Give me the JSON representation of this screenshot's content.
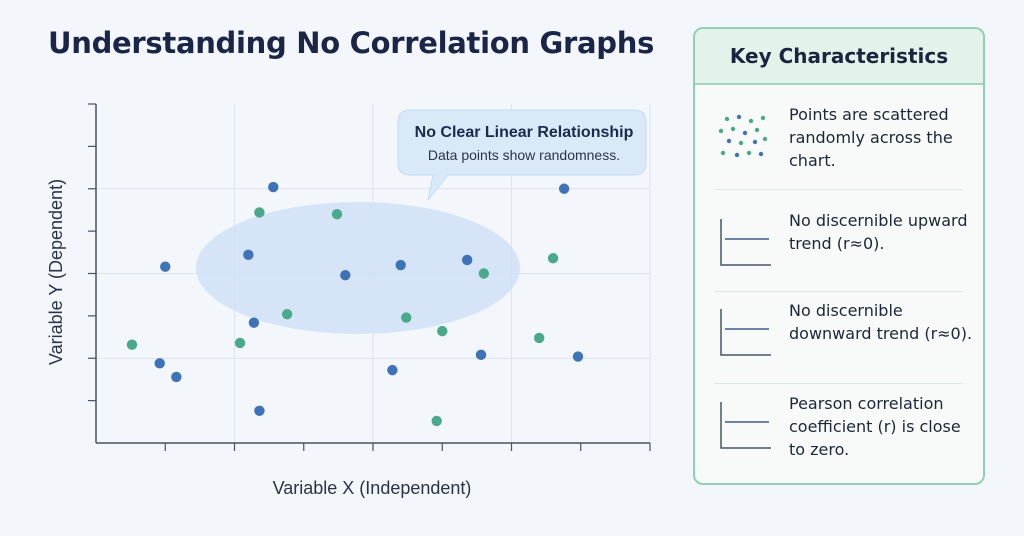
{
  "page": {
    "title": "Understanding No Correlation Graphs"
  },
  "chart_data": {
    "type": "scatter",
    "title": "Understanding No Correlation Graphs",
    "xlabel": "Variable X (Independent)",
    "ylabel": "Variable Y (Dependent)",
    "xlim": [
      0,
      10
    ],
    "ylim": [
      0,
      10
    ],
    "grid": true,
    "legend": "none",
    "colors": {
      "blue": "#3f73b8",
      "green": "#4aa98a",
      "highlight": "#cfe2f6"
    },
    "series": [
      {
        "color": "blue",
        "points": [
          [
            1.25,
            5.2
          ],
          [
            3.2,
            7.55
          ],
          [
            2.75,
            5.55
          ],
          [
            4.5,
            4.95
          ],
          [
            6.7,
            5.4
          ],
          [
            8.45,
            7.5
          ],
          [
            5.5,
            5.25
          ],
          [
            2.85,
            3.55
          ],
          [
            1.15,
            2.35
          ],
          [
            1.45,
            1.95
          ],
          [
            2.95,
            0.95
          ],
          [
            6.95,
            2.6
          ],
          [
            5.35,
            2.15
          ],
          [
            8.7,
            2.55
          ]
        ]
      },
      {
        "color": "green",
        "points": [
          [
            2.95,
            6.8
          ],
          [
            4.35,
            6.75
          ],
          [
            7.0,
            5.0
          ],
          [
            8.25,
            5.45
          ],
          [
            3.45,
            3.8
          ],
          [
            5.6,
            3.7
          ],
          [
            6.25,
            3.3
          ],
          [
            2.6,
            2.95
          ],
          [
            0.65,
            2.9
          ],
          [
            8.0,
            3.1
          ],
          [
            6.15,
            0.65
          ]
        ]
      }
    ],
    "annotation": {
      "title": "No Clear Linear Relationship",
      "subtitle": "Data points show randomness."
    }
  },
  "panel": {
    "title": "Key Characteristics",
    "items": [
      {
        "icon": "scatter-dots-icon",
        "text": "Points are scattered randomly across the chart."
      },
      {
        "icon": "flat-line-chart-icon",
        "text": "No discernible upward trend (r≈0)."
      },
      {
        "icon": "flat-line-chart-icon",
        "text": "No discernible downward trend (r≈0)."
      },
      {
        "icon": "flat-line-chart-icon",
        "text": "Pearson correlation coefficient (r) is close to zero."
      }
    ]
  }
}
